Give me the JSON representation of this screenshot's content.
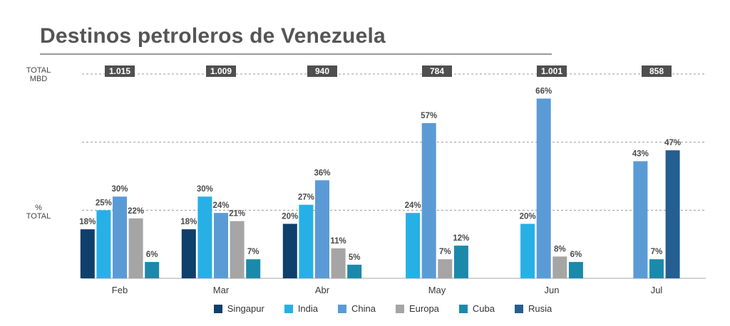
{
  "header": {
    "title": "Destinos petroleros de Venezuela",
    "total_label_line1": "TOTAL",
    "total_label_line2": "MBD",
    "pct_label_line1": "%",
    "pct_label_line2": "TOTAL"
  },
  "chart_data": {
    "type": "bar",
    "title": "Destinos petroleros de Venezuela",
    "categories": [
      "Feb",
      "Mar",
      "Abr",
      "May",
      "Jun",
      "Jul"
    ],
    "totals": [
      "1.015",
      "1.009",
      "940",
      "784",
      "1.001",
      "858"
    ],
    "ylabel": "% TOTAL",
    "ylim": [
      0,
      75
    ],
    "grid": true,
    "legend_position": "bottom",
    "series": [
      {
        "name": "Singapur",
        "color": "#0f3f6b",
        "values": [
          18,
          18,
          20,
          null,
          null,
          null
        ]
      },
      {
        "name": "India",
        "color": "#27b0e6",
        "values": [
          25,
          30,
          27,
          24,
          20,
          null
        ]
      },
      {
        "name": "China",
        "color": "#5b9bd5",
        "values": [
          30,
          24,
          36,
          57,
          66,
          43
        ]
      },
      {
        "name": "Europa",
        "color": "#a5a5a5",
        "values": [
          22,
          21,
          11,
          7,
          8,
          null
        ]
      },
      {
        "name": "Cuba",
        "color": "#1b8aaa",
        "values": [
          6,
          7,
          5,
          12,
          6,
          7
        ]
      },
      {
        "name": "Rusia",
        "color": "#255e91",
        "values": [
          null,
          null,
          null,
          null,
          null,
          47
        ]
      }
    ]
  }
}
